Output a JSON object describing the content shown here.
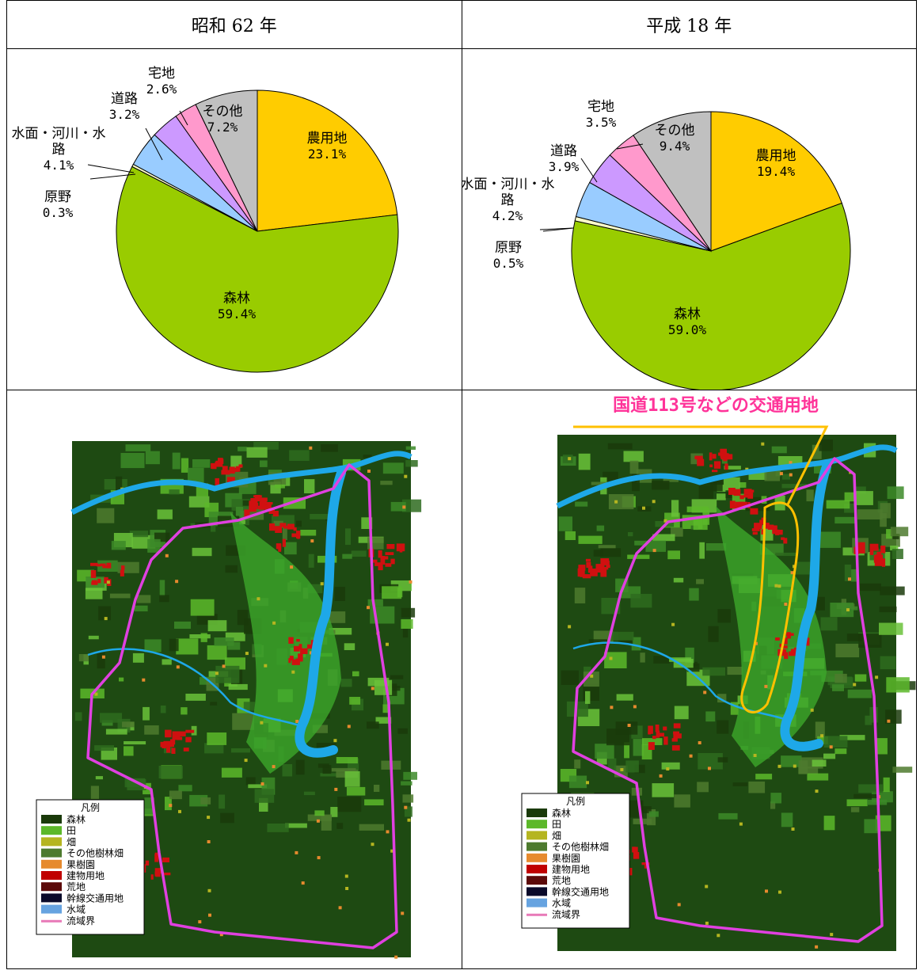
{
  "headers": {
    "left": "昭和 62 年",
    "right": "平成 18 年"
  },
  "chart_data": [
    {
      "type": "pie",
      "title": "昭和 62 年",
      "slices": [
        {
          "name": "農用地",
          "value": 23.1,
          "label": "23.1%",
          "color": "#FFCC00"
        },
        {
          "name": "森林",
          "value": 59.4,
          "label": "59.4%",
          "color": "#99CC00"
        },
        {
          "name": "原野",
          "value": 0.3,
          "label": "0.3%",
          "color": "#FFFFCC"
        },
        {
          "name": "水面・河川・水路",
          "value": 4.1,
          "label": "4.1%",
          "color": "#99CCFF"
        },
        {
          "name": "道路",
          "value": 3.2,
          "label": "3.2%",
          "color": "#CC99FF"
        },
        {
          "name": "宅地",
          "value": 2.6,
          "label": "2.6%",
          "color": "#FF99CC"
        },
        {
          "name": "その他",
          "value": 7.2,
          "label": "7.2%",
          "color": "#C0C0C0"
        }
      ]
    },
    {
      "type": "pie",
      "title": "平成 18 年",
      "slices": [
        {
          "name": "農用地",
          "value": 19.4,
          "label": "19.4%",
          "color": "#FFCC00"
        },
        {
          "name": "森林",
          "value": 59.0,
          "label": "59.0%",
          "color": "#99CC00"
        },
        {
          "name": "原野",
          "value": 0.5,
          "label": "0.5%",
          "color": "#FFFFCC"
        },
        {
          "name": "水面・河川・水路",
          "value": 4.2,
          "label": "4.2%",
          "color": "#99CCFF"
        },
        {
          "name": "道路",
          "value": 3.9,
          "label": "3.9%",
          "color": "#CC99FF"
        },
        {
          "name": "宅地",
          "value": 3.5,
          "label": "3.5%",
          "color": "#FF99CC"
        },
        {
          "name": "その他",
          "value": 9.4,
          "label": "9.4%",
          "color": "#C0C0C0"
        }
      ]
    }
  ],
  "legend": {
    "title": "凡例",
    "items": [
      {
        "label": "森林",
        "color": "#1A3A0A"
      },
      {
        "label": "田",
        "color": "#5CB82A"
      },
      {
        "label": "畑",
        "color": "#B5B520"
      },
      {
        "label": "その他樹林畑",
        "color": "#4D7A2E"
      },
      {
        "label": "果樹園",
        "color": "#E68A2E"
      },
      {
        "label": "建物用地",
        "color": "#C00000"
      },
      {
        "label": "荒地",
        "color": "#5C0A0A"
      },
      {
        "label": "幹線交通用地",
        "color": "#0A0A2A"
      },
      {
        "label": "水域",
        "color": "#66A3E0"
      },
      {
        "label": "流域界",
        "color": "#E87AB8"
      }
    ]
  },
  "annotation": {
    "text": "国道113号などの交通用地",
    "color": "#FF3399",
    "line_color": "#FFC000"
  },
  "colors": {
    "map_base": "#1E4A12",
    "boundary": "#E040E0",
    "river": "#1EA8E8"
  }
}
